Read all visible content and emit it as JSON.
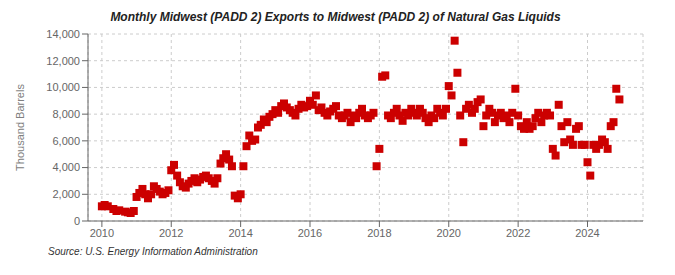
{
  "chart_data": {
    "type": "scatter",
    "title": "Monthly Midwest (PADD 2) Exports to Midwest (PADD 2) of Natural Gas Liquids",
    "ylabel": "Thousand Barrels",
    "annotations": [
      "Source: U.S. Energy Information Administration"
    ],
    "color": "#cc0000",
    "marker": "square",
    "grid": true,
    "xlim": [
      2009.6,
      2025.6
    ],
    "xticks": [
      2010,
      2012,
      2014,
      2016,
      2018,
      2020,
      2022,
      2024
    ],
    "ylim": [
      0,
      14000
    ],
    "yticks": [
      0,
      {
        "value": 2000,
        "label": "2,000"
      },
      {
        "value": 4000,
        "label": "4,000"
      },
      {
        "value": 6000,
        "label": "6,000"
      },
      {
        "value": 8000,
        "label": "8,000"
      },
      {
        "value": 10000,
        "label": "10,000"
      },
      {
        "value": 12000,
        "label": "12,000"
      },
      {
        "value": 14000,
        "label": "14,000"
      }
    ],
    "x": [
      2010.0,
      2010.08,
      2010.17,
      2010.33,
      2010.42,
      2010.5,
      2010.67,
      2010.75,
      2010.83,
      2010.92,
      2011.0,
      2011.08,
      2011.17,
      2011.25,
      2011.33,
      2011.42,
      2011.5,
      2011.58,
      2011.67,
      2011.75,
      2011.83,
      2011.92,
      2012.0,
      2012.08,
      2012.17,
      2012.25,
      2012.33,
      2012.42,
      2012.5,
      2012.58,
      2012.67,
      2012.75,
      2012.83,
      2012.92,
      2013.0,
      2013.08,
      2013.17,
      2013.25,
      2013.33,
      2013.42,
      2013.5,
      2013.58,
      2013.67,
      2013.75,
      2013.83,
      2013.92,
      2014.0,
      2014.08,
      2014.17,
      2014.25,
      2014.33,
      2014.42,
      2014.5,
      2014.58,
      2014.67,
      2014.75,
      2014.83,
      2014.92,
      2015.0,
      2015.08,
      2015.17,
      2015.25,
      2015.33,
      2015.42,
      2015.5,
      2015.58,
      2015.67,
      2015.75,
      2015.83,
      2015.92,
      2016.0,
      2016.08,
      2016.17,
      2016.25,
      2016.33,
      2016.42,
      2016.5,
      2016.58,
      2016.67,
      2016.75,
      2016.83,
      2016.92,
      2017.0,
      2017.08,
      2017.17,
      2017.25,
      2017.33,
      2017.42,
      2017.5,
      2017.58,
      2017.67,
      2017.75,
      2017.83,
      2017.92,
      2018.0,
      2018.08,
      2018.17,
      2018.25,
      2018.33,
      2018.42,
      2018.5,
      2018.58,
      2018.67,
      2018.75,
      2018.83,
      2018.92,
      2019.0,
      2019.08,
      2019.17,
      2019.25,
      2019.33,
      2019.42,
      2019.5,
      2019.58,
      2019.67,
      2019.75,
      2019.83,
      2019.92,
      2020.0,
      2020.08,
      2020.17,
      2020.25,
      2020.33,
      2020.42,
      2020.5,
      2020.58,
      2020.67,
      2020.75,
      2020.83,
      2020.92,
      2021.0,
      2021.08,
      2021.17,
      2021.25,
      2021.33,
      2021.42,
      2021.5,
      2021.58,
      2021.67,
      2021.75,
      2021.83,
      2021.92,
      2022.0,
      2022.08,
      2022.17,
      2022.25,
      2022.33,
      2022.42,
      2022.5,
      2022.58,
      2022.67,
      2022.75,
      2022.83,
      2022.92,
      2023.0,
      2023.08,
      2023.17,
      2023.25,
      2023.33,
      2023.42,
      2023.5,
      2023.58,
      2023.67,
      2023.75,
      2023.83,
      2023.92,
      2024.0,
      2024.08,
      2024.17,
      2024.25,
      2024.33,
      2024.42,
      2024.5,
      2024.58,
      2024.67,
      2024.75,
      2024.83,
      2024.92
    ],
    "values": [
      1100,
      1200,
      1100,
      900,
      750,
      800,
      700,
      650,
      600,
      750,
      1800,
      2100,
      2400,
      2000,
      1700,
      2000,
      2600,
      2400,
      2200,
      2000,
      2100,
      2300,
      3800,
      4200,
      3400,
      2900,
      2600,
      2500,
      2800,
      3000,
      3200,
      2900,
      3100,
      3300,
      3400,
      3200,
      3000,
      2800,
      3200,
      4300,
      4700,
      5000,
      4600,
      4100,
      1900,
      1700,
      2000,
      4100,
      5600,
      6400,
      6000,
      6100,
      7000,
      7200,
      7600,
      7400,
      7800,
      8000,
      8300,
      8100,
      8600,
      8800,
      8500,
      8300,
      8100,
      7900,
      8400,
      8700,
      8500,
      8600,
      9000,
      8700,
      9400,
      8300,
      8500,
      8100,
      7900,
      8200,
      8400,
      8600,
      7900,
      7700,
      7900,
      8100,
      7400,
      7900,
      7700,
      8100,
      8400,
      7900,
      7700,
      7900,
      8100,
      4100,
      5400,
      10800,
      10900,
      7900,
      7700,
      8100,
      8400,
      7900,
      7500,
      8100,
      7900,
      8400,
      8100,
      7900,
      8400,
      8100,
      7700,
      7400,
      7900,
      7700,
      8400,
      8100,
      7900,
      8400,
      10100,
      9400,
      13500,
      11100,
      7900,
      5900,
      8400,
      8700,
      8100,
      8400,
      8900,
      9100,
      7100,
      7900,
      8400,
      8100,
      7400,
      7900,
      8100,
      7700,
      7900,
      7400,
      8100,
      9900,
      7900,
      7100,
      6900,
      7400,
      6900,
      7100,
      7700,
      8100,
      7400,
      7900,
      8100,
      7900,
      5400,
      4900,
      8700,
      7100,
      5900,
      7400,
      6100,
      5700,
      6900,
      7100,
      5700,
      5700,
      4400,
      3400,
      5700,
      5400,
      5700,
      6100,
      5900,
      5400,
      7100,
      7400,
      9900,
      9100
    ]
  }
}
